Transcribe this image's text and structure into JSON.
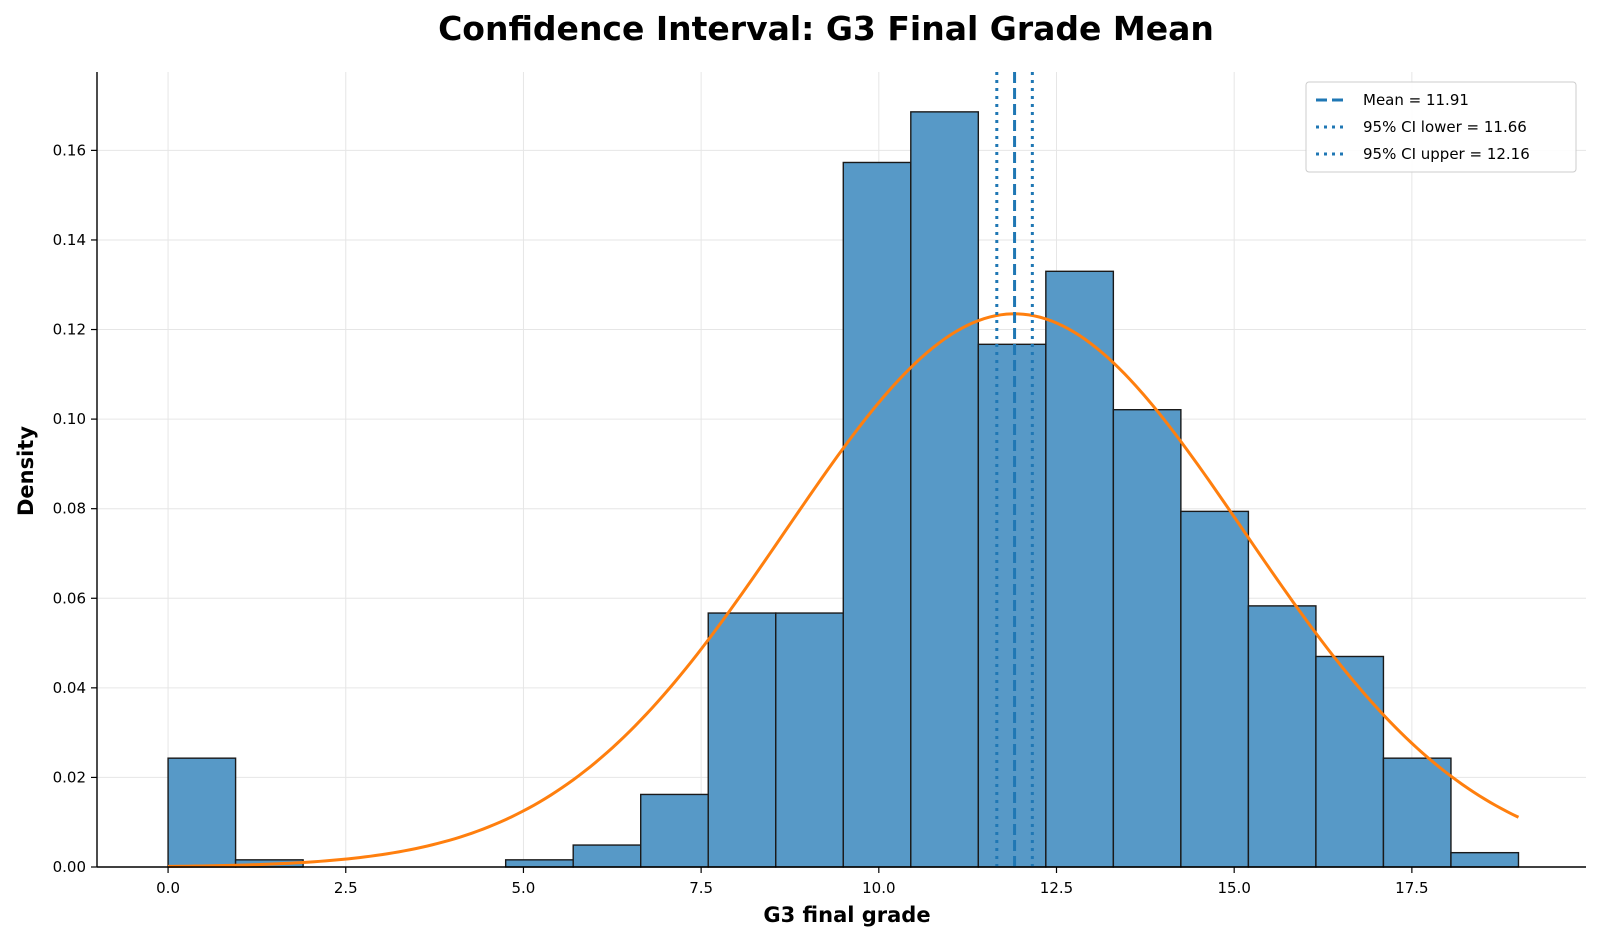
{
  "chart_data": {
    "type": "bar",
    "title": "Confidence Interval: G3 Final Grade Mean",
    "xlabel": "G3 final grade",
    "ylabel": "Density",
    "xlim": [
      -1.0,
      19.95
    ],
    "ylim": [
      0,
      0.1775
    ],
    "xticks": [
      0.0,
      2.5,
      5.0,
      7.5,
      10.0,
      12.5,
      15.0,
      17.5
    ],
    "xtick_labels": [
      "0.0",
      "2.5",
      "5.0",
      "7.5",
      "10.0",
      "12.5",
      "15.0",
      "17.5"
    ],
    "yticks": [
      0.0,
      0.02,
      0.04,
      0.06,
      0.08,
      0.1,
      0.12,
      0.14,
      0.16
    ],
    "ytick_labels": [
      "0.00",
      "0.02",
      "0.04",
      "0.06",
      "0.08",
      "0.10",
      "0.12",
      "0.14",
      "0.16"
    ],
    "grid": true,
    "legend_position": "top-right",
    "histogram": {
      "bin_edges": [
        0.0,
        0.95,
        1.9,
        2.85,
        3.8,
        4.75,
        5.7,
        6.65,
        7.6,
        8.55,
        9.5,
        10.45,
        11.4,
        12.35,
        13.3,
        14.25,
        15.2,
        16.15,
        17.1,
        18.05,
        19.0
      ],
      "density": [
        0.0243,
        0.0016,
        0.0,
        0.0,
        0.0,
        0.0016,
        0.0049,
        0.0162,
        0.0567,
        0.0567,
        0.1573,
        0.1686,
        0.1167,
        0.133,
        0.1021,
        0.0794,
        0.0583,
        0.047,
        0.0243,
        0.0032
      ],
      "fill_color": "#5799c7",
      "edge_color": "#1a1a1a"
    },
    "normal_curve": {
      "mean": 11.91,
      "std": 3.23,
      "x_range": [
        0.0,
        19.0
      ],
      "color": "#ff7f0e"
    },
    "vertical_lines": [
      {
        "label": "Mean = 11.91",
        "x": 11.91,
        "style": "dashed",
        "color": "#1f77b4"
      },
      {
        "label": "95% CI lower = 11.66",
        "x": 11.66,
        "style": "dotted",
        "color": "#1f77b4"
      },
      {
        "label": "95% CI upper = 12.16",
        "x": 12.16,
        "style": "dotted",
        "color": "#1f77b4"
      }
    ]
  }
}
